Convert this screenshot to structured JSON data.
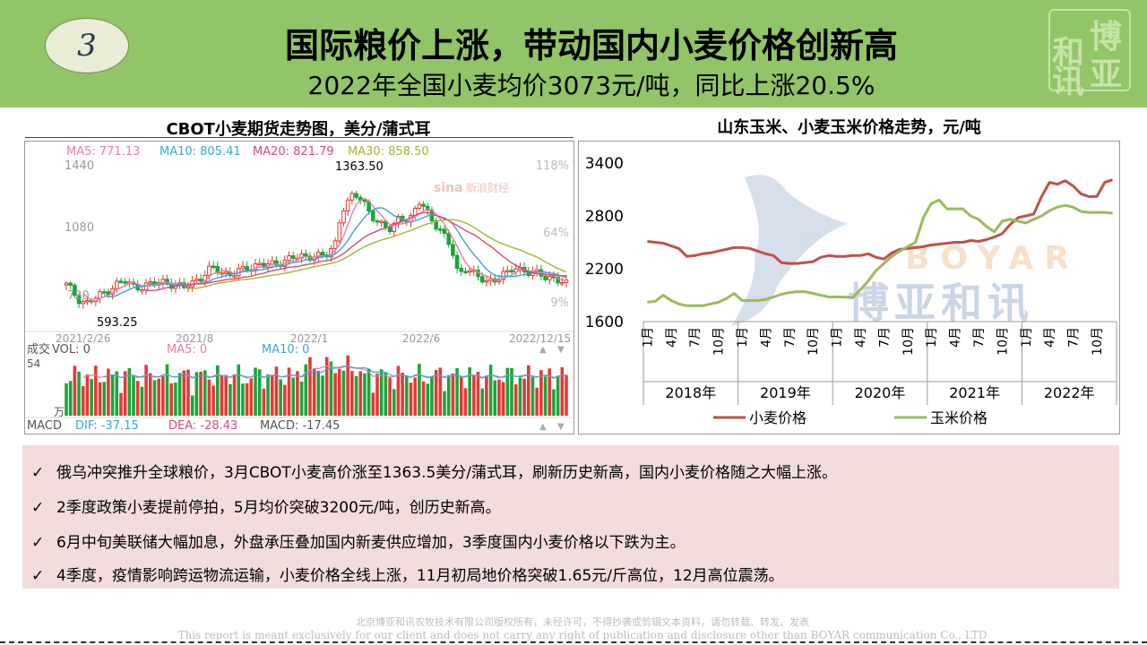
{
  "header": {
    "number": "3",
    "title": "国际粮价上涨，带动国内小麦价格创新高",
    "subtitle": "2022年全国小麦均价3073元/吨，同比上涨20.5%",
    "logo_chars": [
      "和",
      "博",
      "讯",
      "亚"
    ],
    "colors": {
      "band": "#92c468"
    }
  },
  "left_chart": {
    "title": "CBOT小麦期货走势图，美分/蒲式耳",
    "ma_legend": [
      {
        "label": "MA5: 771.13",
        "color": "#f07aa0"
      },
      {
        "label": "MA10: 805.41",
        "color": "#3aa6d6"
      },
      {
        "label": "MA20: 821.79",
        "color": "#e04870"
      },
      {
        "label": "MA30: 858.50",
        "color": "#9aba32"
      }
    ],
    "y_ticks": [
      "1440",
      "1080",
      "720"
    ],
    "pct_ticks": [
      "118%",
      "64%",
      "9%"
    ],
    "high_label": "1363.50",
    "low_label": "593.25",
    "x_labels": [
      "2021/2/26",
      "2021/8",
      "2022/1",
      "2022/6",
      "2022/12/15"
    ],
    "watermark": "新浪财经",
    "vol_legend": [
      "成交",
      "VOL: 0",
      "MA5: 0",
      "MA10: 0"
    ],
    "vol_axis": [
      "54",
      "万"
    ],
    "macd_legend": [
      "MACD",
      "DIF: -37.15",
      "DEA: -28.43",
      "MACD: -17.45"
    ]
  },
  "chart_data": {
    "type": "line",
    "title": "山东玉米、小麦玉米价格走势，元/吨",
    "y_ticks": [
      3400,
      2800,
      2200,
      1600
    ],
    "ylim": [
      1600,
      3400
    ],
    "x_month_labels": [
      "1月",
      "4月",
      "7月",
      "10月"
    ],
    "year_groups": [
      "2018年",
      "2019年",
      "2020年",
      "2021年",
      "2022年"
    ],
    "x_count": 60,
    "watermark_brand": "BOYAR",
    "watermark_cn": "博亚和讯",
    "series": [
      {
        "name": "小麦价格",
        "color": "#c0504d",
        "values": [
          2510,
          2500,
          2490,
          2460,
          2430,
          2340,
          2350,
          2370,
          2380,
          2400,
          2420,
          2440,
          2440,
          2430,
          2400,
          2370,
          2350,
          2270,
          2260,
          2260,
          2270,
          2280,
          2330,
          2350,
          2340,
          2340,
          2350,
          2350,
          2370,
          2330,
          2310,
          2380,
          2420,
          2430,
          2440,
          2450,
          2470,
          2480,
          2490,
          2500,
          2500,
          2520,
          2510,
          2530,
          2560,
          2600,
          2700,
          2780,
          2800,
          2820,
          3020,
          3180,
          3160,
          3200,
          3140,
          3050,
          3020,
          3020,
          3180,
          3210
        ]
      },
      {
        "name": "玉米价格",
        "color": "#9bbb59",
        "values": [
          1820,
          1830,
          1900,
          1840,
          1800,
          1780,
          1780,
          1780,
          1800,
          1820,
          1860,
          1920,
          1840,
          1840,
          1840,
          1850,
          1880,
          1910,
          1930,
          1940,
          1940,
          1920,
          1900,
          1880,
          1880,
          1880,
          1870,
          1960,
          2060,
          2180,
          2260,
          2340,
          2400,
          2450,
          2500,
          2780,
          2940,
          2980,
          2880,
          2880,
          2880,
          2800,
          2760,
          2680,
          2620,
          2740,
          2760,
          2740,
          2720,
          2760,
          2800,
          2860,
          2900,
          2920,
          2900,
          2850,
          2840,
          2840,
          2840,
          2830
        ]
      }
    ]
  },
  "bullets": [
    "俄乌冲突推升全球粮价，3月CBOT小麦高价涨至1363.5美分/蒲式耳，刷新历史新高，国内小麦价格随之大幅上涨。",
    "2季度政策小麦提前停拍，5月均价突破3200元/吨，创历史新高。",
    "6月中旬美联储大幅加息，外盘承压叠加国内新麦供应增加，3季度国内小麦价格以下跌为主。",
    "4季度，疫情影响跨运物流运输，小麦价格全线上涨，11月初局地价格突破1.65元/斤高位，12月高位震荡。"
  ],
  "check_mark": "✓",
  "footer": {
    "line1": "北京博亚和讯农牧技术有限公司版权所有，未经许可，不得抄袭或剪辑文本资料，请勿转载、转发、发表",
    "line2": "This report is meant exclusively for our client and does not carry any right of publication and disclosure other than BOYAR communication Co., LTD"
  }
}
